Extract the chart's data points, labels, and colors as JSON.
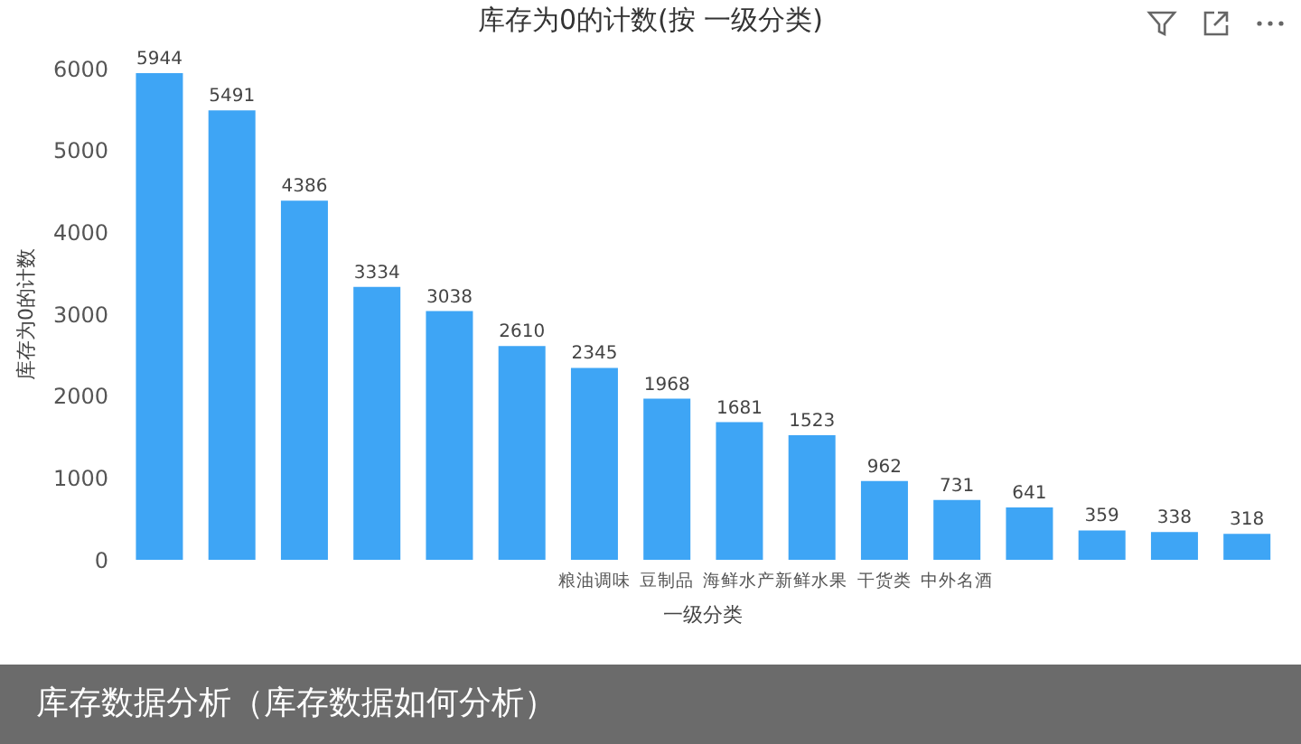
{
  "chart_data": {
    "type": "bar",
    "title": "库存为0的计数(按 一级分类)",
    "xlabel": "一级分类",
    "ylabel": "库存为0的计数",
    "annotations": [
      "库存数据分析（库存数据如何分析）"
    ],
    "categories": [
      null,
      null,
      null,
      null,
      null,
      null,
      "粮油调味",
      "豆制品",
      "海鲜水产",
      "新鲜水果",
      "干货类",
      "中外名酒",
      null,
      null,
      null,
      null
    ],
    "values": [
      5944,
      5491,
      4386,
      3334,
      3038,
      2610,
      2345,
      1968,
      1681,
      1523,
      962,
      731,
      641,
      359,
      338,
      318
    ],
    "color": "#3ea5f5",
    "ylim": [
      0,
      6000
    ],
    "yticks": [
      0,
      1000,
      2000,
      3000,
      4000,
      5000,
      6000
    ],
    "data_labels": true
  }
}
